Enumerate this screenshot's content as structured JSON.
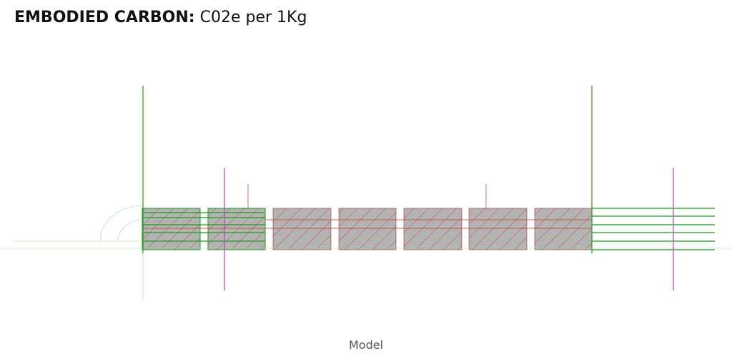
{
  "header": {
    "title_bold": "EMBODIED CARBON:",
    "title_rest": "C02e per 1Kg"
  },
  "viewport": {
    "label": "Model"
  }
}
